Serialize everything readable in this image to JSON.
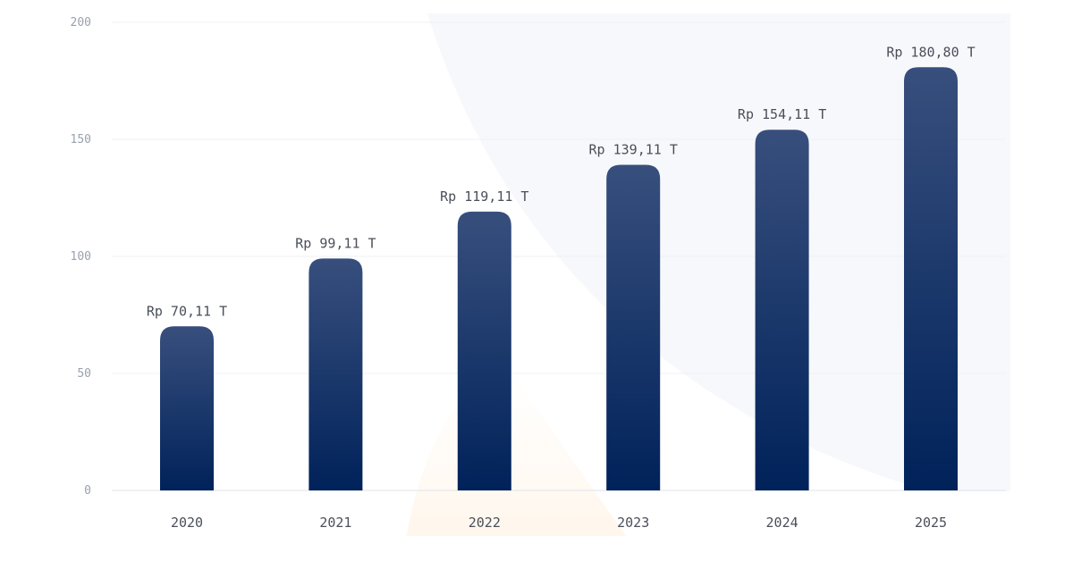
{
  "chart_data": {
    "type": "bar",
    "categories": [
      "2020",
      "2021",
      "2022",
      "2023",
      "2024",
      "2025"
    ],
    "values": [
      70.11,
      99.11,
      119.11,
      139.11,
      154.11,
      180.8
    ],
    "data_labels": [
      "Rp 70,11 T",
      "Rp 99,11 T",
      "Rp 119,11 T",
      "Rp 139,11 T",
      "Rp 154,11 T",
      "Rp 180,80 T"
    ],
    "y_ticks": [
      "0",
      "50",
      "100",
      "150",
      "200"
    ],
    "ylim": [
      0,
      200
    ],
    "grid": true,
    "title": "",
    "xlabel": "",
    "ylabel": "",
    "colors": {
      "bar_top": "#384f7d",
      "bar_bottom": "#00225a"
    }
  }
}
